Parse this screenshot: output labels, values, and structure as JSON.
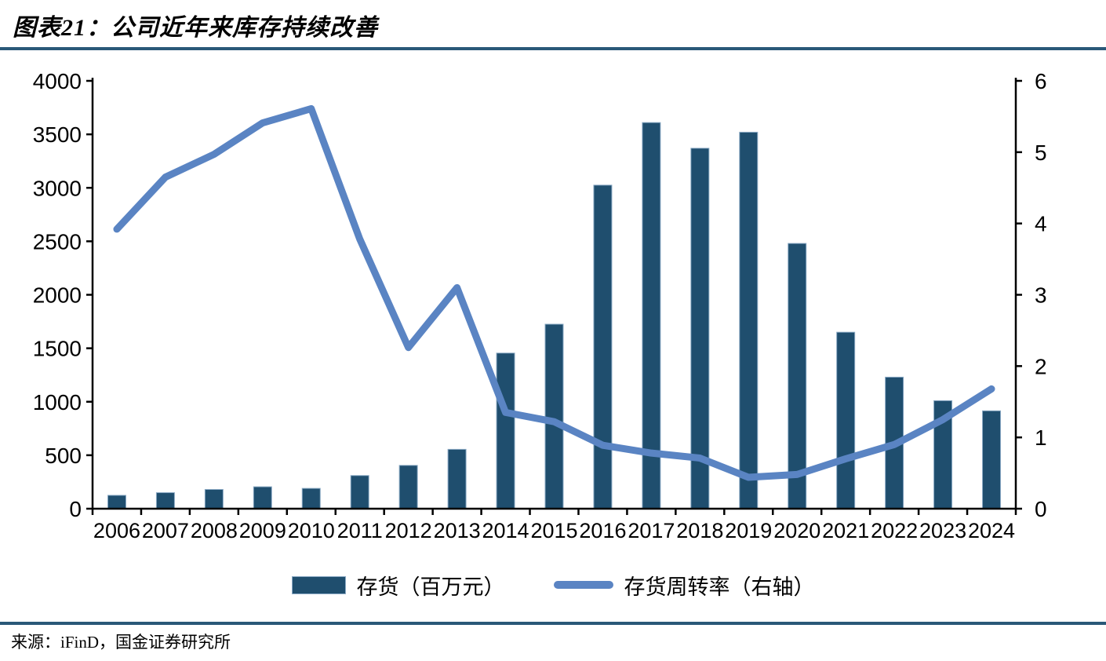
{
  "page": {
    "title": "图表21：公司近年来库存持续改善",
    "source": "来源：iFinD，国金证券研究所"
  },
  "legend": {
    "items": [
      {
        "label": "存货（百万元）",
        "type": "bar"
      },
      {
        "label": "存货周转率（右轴）",
        "type": "line"
      }
    ]
  },
  "colors": {
    "bar": "#1f4e6e",
    "bar_edge": "#8aa9c4",
    "line": "#5a84c3",
    "axis": "#000000",
    "rule": "#2a5878",
    "text": "#000000"
  },
  "chart_data": {
    "type": "bar+line combo",
    "title": "图表21：公司近年来库存持续改善",
    "categories": [
      "2006",
      "2007",
      "2008",
      "2009",
      "2010",
      "2011",
      "2012",
      "2013",
      "2014",
      "2015",
      "2016",
      "2017",
      "2018",
      "2019",
      "2020",
      "2021",
      "2022",
      "2023",
      "2024"
    ],
    "series": [
      {
        "name": "存货（百万元）",
        "type": "bar",
        "axis": "left",
        "values": [
          125,
          150,
          180,
          205,
          190,
          310,
          405,
          555,
          1455,
          1725,
          3025,
          3610,
          3370,
          3520,
          2480,
          1650,
          1230,
          1010,
          915
        ]
      },
      {
        "name": "存货周转率（右轴）",
        "type": "line",
        "axis": "right",
        "values": [
          3.92,
          4.65,
          4.97,
          5.41,
          5.61,
          3.78,
          2.26,
          3.1,
          1.35,
          1.22,
          0.89,
          0.78,
          0.71,
          0.44,
          0.48,
          0.7,
          0.9,
          1.25,
          1.68
        ]
      }
    ],
    "left_axis": {
      "min": 0,
      "max": 4000,
      "step": 500,
      "tick_labels": [
        "0",
        "500",
        "1000",
        "1500",
        "2000",
        "2500",
        "3000",
        "3500",
        "4000"
      ]
    },
    "right_axis": {
      "min": 0,
      "max": 6,
      "step": 1,
      "tick_labels": [
        "0",
        "1",
        "2",
        "3",
        "4",
        "5",
        "6"
      ]
    },
    "grid": false,
    "legend_position": "bottom"
  }
}
